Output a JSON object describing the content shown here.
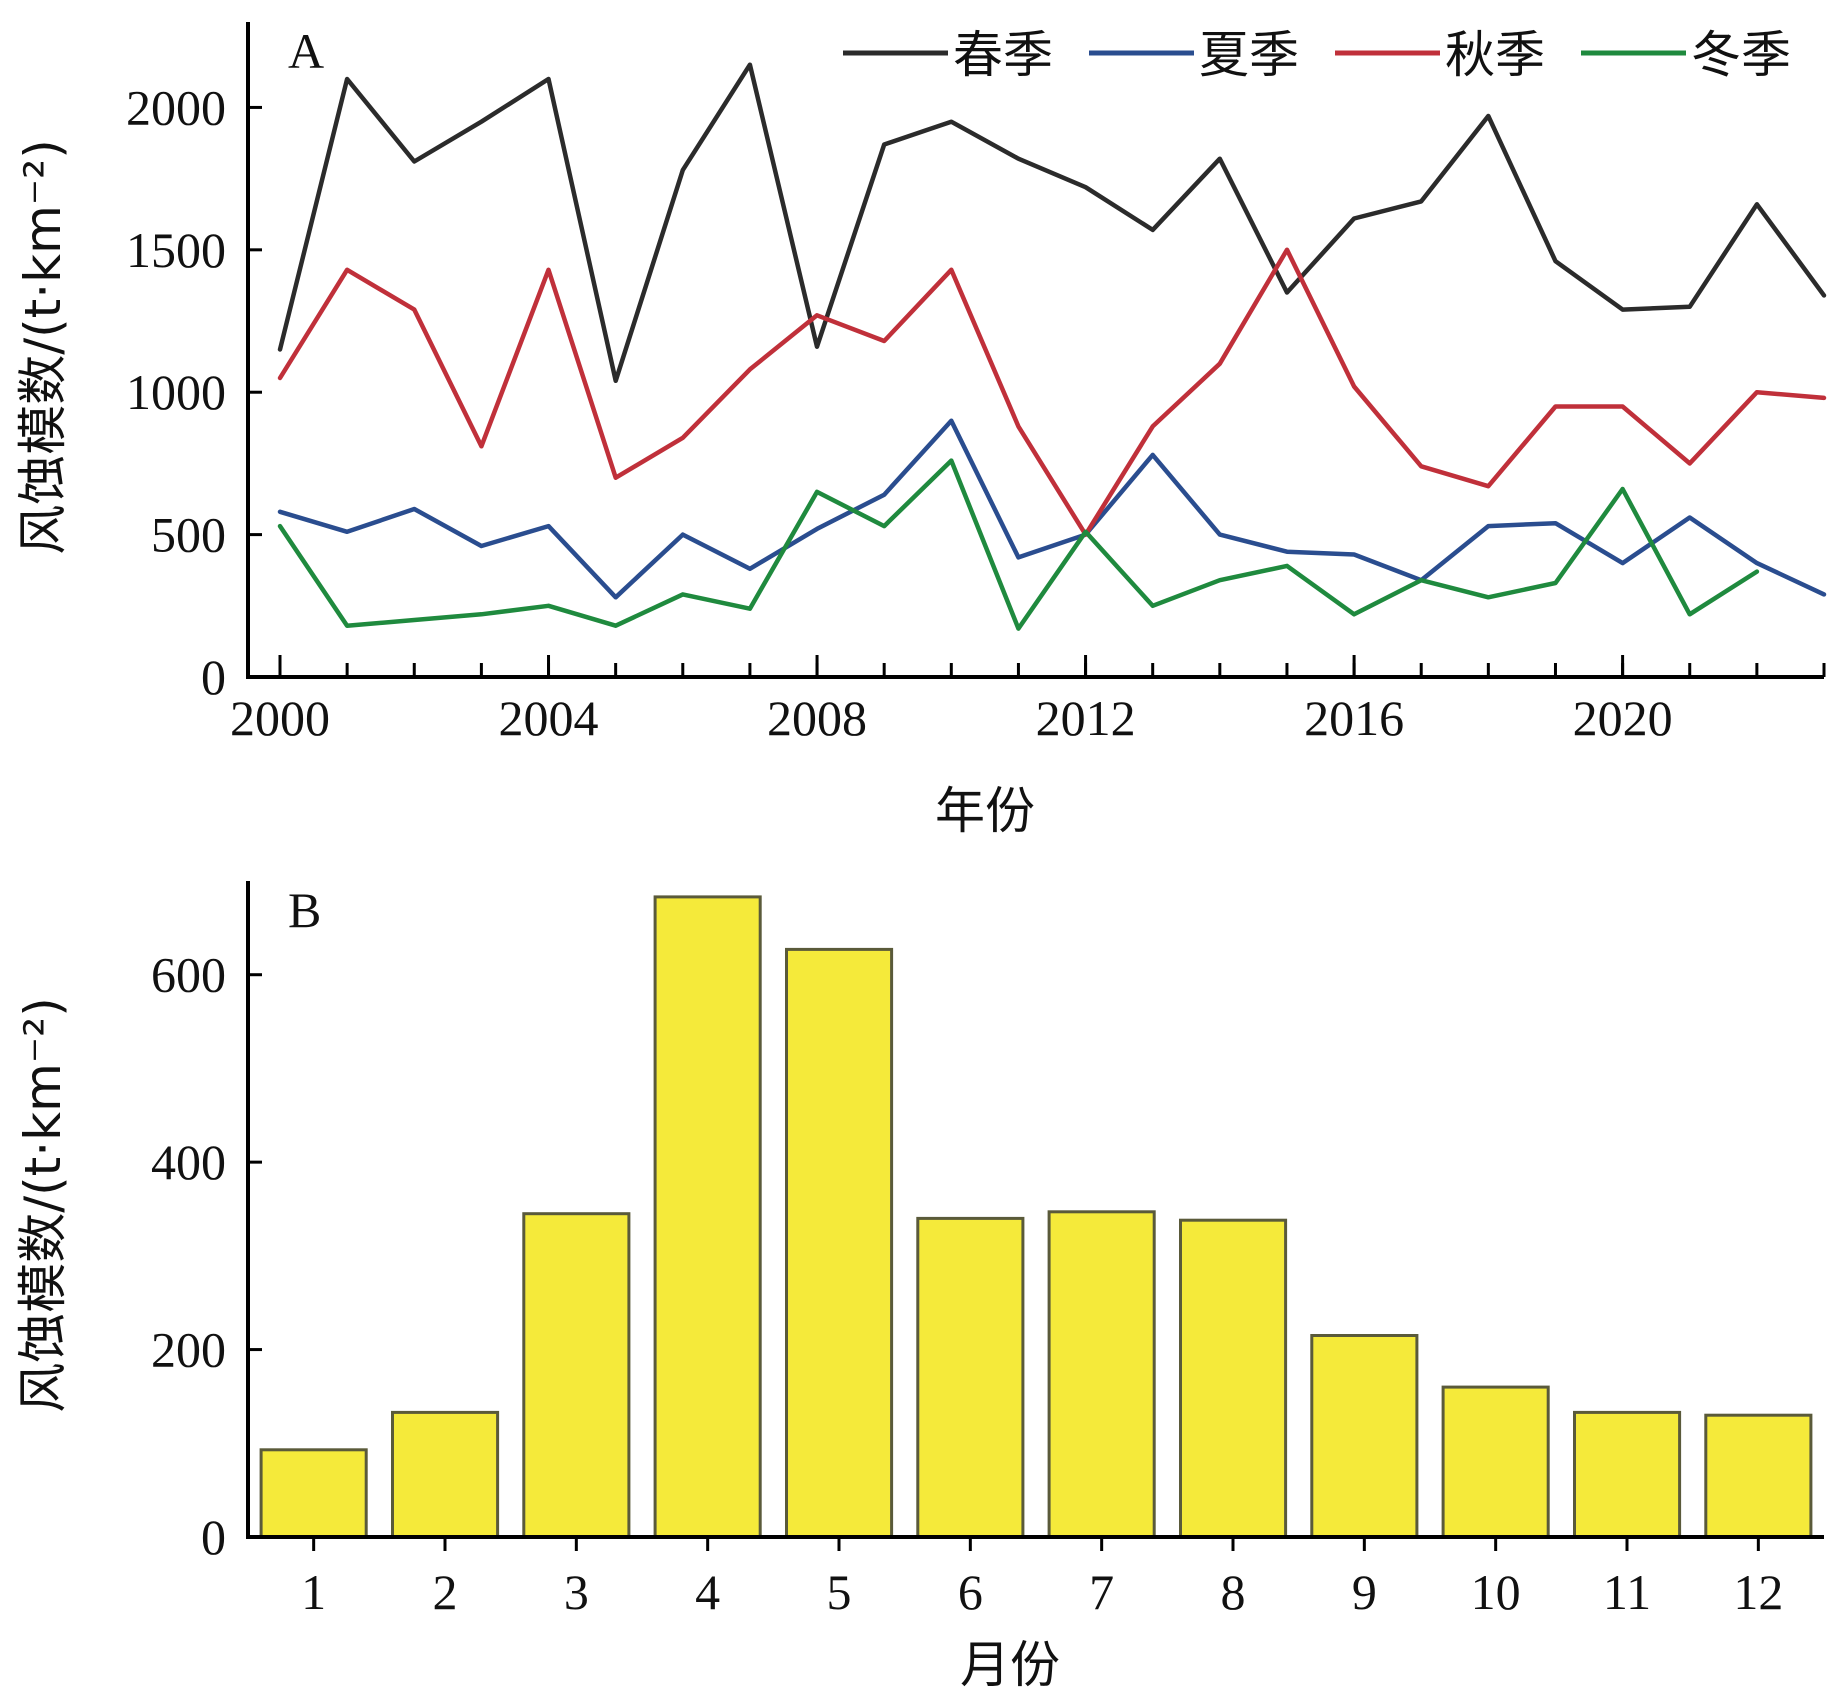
{
  "chart_data": [
    {
      "type": "line",
      "panel_label": "A",
      "xlabel": "年份",
      "ylabel": "风蚀模数/(t·km⁻²)",
      "xlim": [
        2000,
        2023
      ],
      "ylim": [
        0,
        2300
      ],
      "xticks": [
        2000,
        2004,
        2008,
        2012,
        2016,
        2020
      ],
      "yticks": [
        0,
        500,
        1000,
        1500,
        2000
      ],
      "legend_position": "top-right",
      "x": [
        2000,
        2001,
        2002,
        2003,
        2004,
        2005,
        2006,
        2007,
        2008,
        2009,
        2010,
        2011,
        2012,
        2013,
        2014,
        2015,
        2016,
        2017,
        2018,
        2019,
        2020,
        2021,
        2022,
        2023
      ],
      "series": [
        {
          "name": "春季",
          "color": "#2b2b2b",
          "values": [
            1150,
            2100,
            1810,
            1950,
            2100,
            1040,
            1780,
            2150,
            1160,
            1870,
            1950,
            1820,
            1720,
            1570,
            1820,
            1350,
            1610,
            1670,
            1970,
            1460,
            1290,
            1300,
            1660,
            1340
          ]
        },
        {
          "name": "夏季",
          "color": "#2a4d8f",
          "values": [
            580,
            510,
            590,
            460,
            530,
            280,
            500,
            380,
            520,
            640,
            900,
            420,
            500,
            780,
            500,
            440,
            430,
            340,
            530,
            540,
            400,
            560,
            400,
            290
          ]
        },
        {
          "name": "秋季",
          "color": "#c0303a",
          "values": [
            1050,
            1430,
            1290,
            810,
            1430,
            700,
            840,
            1080,
            1270,
            1180,
            1430,
            880,
            500,
            880,
            1100,
            1500,
            1020,
            740,
            670,
            950,
            950,
            750,
            1000,
            980
          ]
        },
        {
          "name": "冬季",
          "color": "#1f8a3e",
          "values": [
            530,
            180,
            200,
            220,
            250,
            180,
            290,
            240,
            650,
            530,
            760,
            170,
            510,
            250,
            340,
            390,
            220,
            340,
            280,
            330,
            660,
            220,
            370,
            null
          ]
        }
      ]
    },
    {
      "type": "bar",
      "panel_label": "B",
      "xlabel": "月份",
      "ylabel": "风蚀模数/(t·km⁻²)",
      "ylim": [
        0,
        700
      ],
      "yticks": [
        0,
        200,
        400,
        600
      ],
      "categories": [
        "1",
        "2",
        "3",
        "4",
        "5",
        "6",
        "7",
        "8",
        "9",
        "10",
        "11",
        "12"
      ],
      "values": [
        93,
        133,
        345,
        683,
        627,
        340,
        347,
        338,
        215,
        160,
        133,
        130
      ],
      "bar_color": "#f5ea3a"
    }
  ]
}
